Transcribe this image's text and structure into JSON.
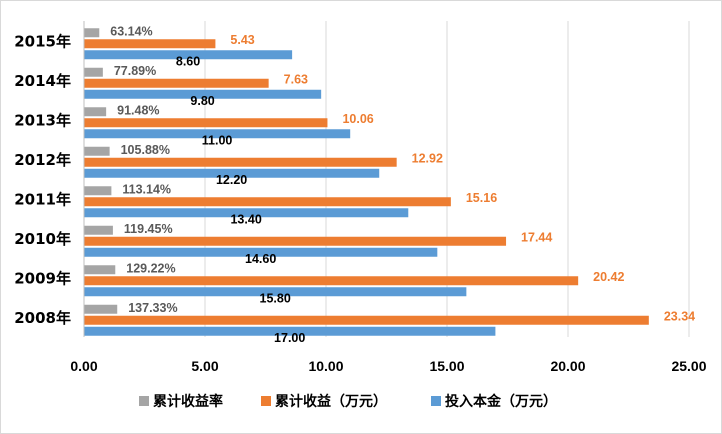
{
  "chart_data": {
    "type": "bar",
    "orientation": "horizontal",
    "categories": [
      "2008年",
      "2009年",
      "2010年",
      "2011年",
      "2012年",
      "2013年",
      "2014年",
      "2015年"
    ],
    "series": [
      {
        "name": "累计收益率",
        "values": [
          1.3733,
          1.2922,
          1.1945,
          1.1314,
          1.0588,
          0.9148,
          0.7789,
          0.6314
        ],
        "value_labels": [
          "137.33%",
          "129.22%",
          "119.45%",
          "113.14%",
          "105.88%",
          "91.48%",
          "77.89%",
          "63.14%"
        ],
        "color": "#a5a5a5",
        "label_color": "#595959"
      },
      {
        "name": "累计收益（万元）",
        "values": [
          23.34,
          20.42,
          17.44,
          15.16,
          12.92,
          10.06,
          7.63,
          5.43
        ],
        "value_labels": [
          "23.34",
          "20.42",
          "17.44",
          "15.16",
          "12.92",
          "10.06",
          "7.63",
          "5.43"
        ],
        "color": "#ed7d31",
        "label_color": "#ed7d31"
      },
      {
        "name": "投入本金（万元）",
        "values": [
          17.0,
          15.8,
          14.6,
          13.4,
          12.2,
          11.0,
          9.8,
          8.6
        ],
        "value_labels": [
          "17.00",
          "15.80",
          "14.60",
          "13.40",
          "12.20",
          "11.00",
          "9.80",
          "8.60"
        ],
        "color": "#5b9bd5",
        "label_color": "#000000"
      }
    ],
    "x_ticks": [
      "0.00",
      "5.00",
      "10.00",
      "15.00",
      "20.00",
      "25.00"
    ],
    "xlim": [
      0,
      25
    ],
    "grid": true,
    "legend": "bottom"
  }
}
